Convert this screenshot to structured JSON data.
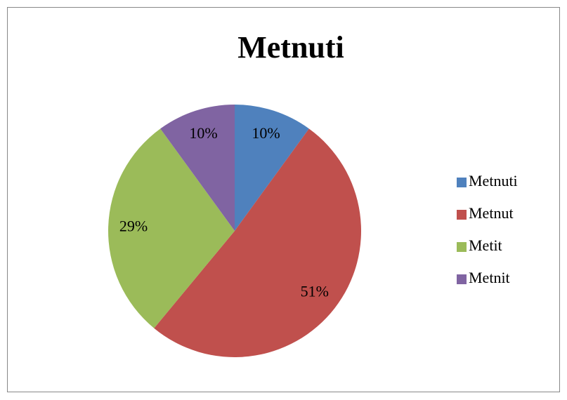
{
  "chart_data": {
    "type": "pie",
    "title": "Metnuti",
    "categories": [
      "Metnuti",
      "Metnut",
      "Metit",
      "Metnit"
    ],
    "values": [
      10,
      51,
      29,
      10
    ],
    "value_labels": [
      "10%",
      "51%",
      "29%",
      "10%"
    ],
    "colors": [
      "#4f81bd",
      "#c0504d",
      "#9bbb59",
      "#8064a2"
    ],
    "legend": "right"
  }
}
